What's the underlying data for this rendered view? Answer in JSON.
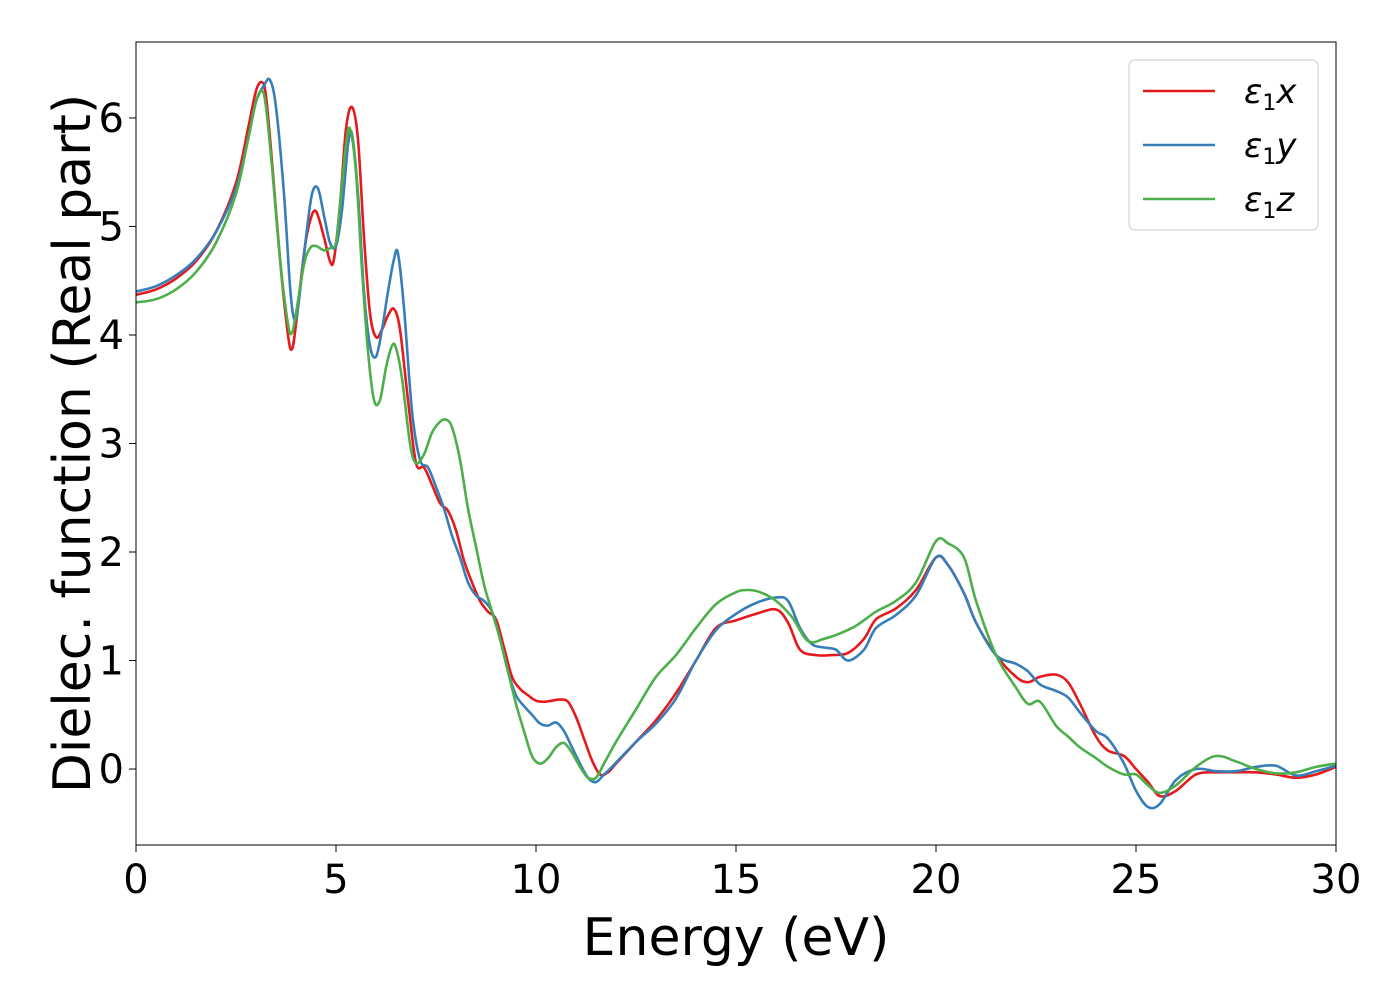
{
  "chart_data": {
    "type": "line",
    "title": "",
    "xlabel": "Energy (eV)",
    "ylabel": "Dielec. function (Real part)",
    "xlim": [
      0,
      30
    ],
    "ylim": [
      -0.7,
      6.7
    ],
    "xticks": [
      0,
      5,
      10,
      15,
      20,
      25,
      30
    ],
    "yticks": [
      0,
      1,
      2,
      3,
      4,
      5,
      6
    ],
    "grid": false,
    "legend_position": "top-right",
    "series": [
      {
        "name": "ε1x",
        "legend_main": "ε",
        "legend_sub": "1",
        "legend_var": "x",
        "color": "#e41a1c",
        "x": [
          0,
          0.5,
          1.0,
          1.5,
          2.0,
          2.5,
          2.8,
          3.0,
          3.15,
          3.25,
          3.4,
          3.6,
          3.8,
          3.9,
          4.0,
          4.2,
          4.35,
          4.5,
          4.7,
          4.85,
          4.95,
          5.1,
          5.25,
          5.4,
          5.55,
          5.7,
          5.85,
          6.0,
          6.15,
          6.3,
          6.45,
          6.6,
          6.8,
          7.0,
          7.2,
          7.4,
          7.6,
          7.8,
          8.0,
          8.2,
          8.4,
          8.6,
          8.8,
          9.0,
          9.2,
          9.4,
          9.6,
          9.8,
          10.0,
          10.2,
          10.4,
          10.6,
          10.8,
          11.0,
          11.2,
          11.4,
          11.6,
          11.8,
          12.0,
          12.5,
          13.0,
          13.5,
          14.0,
          14.5,
          15.0,
          15.5,
          16.0,
          16.3,
          16.6,
          17.0,
          17.4,
          17.8,
          18.2,
          18.5,
          19.0,
          19.5,
          20.0,
          20.3,
          20.7,
          21.0,
          21.5,
          22.0,
          22.3,
          22.6,
          23.0,
          23.3,
          23.6,
          24.0,
          24.3,
          24.7,
          25.0,
          25.3,
          25.6,
          26.0,
          26.5,
          27.0,
          27.5,
          28.0,
          28.5,
          29.0,
          29.5,
          30.0
        ],
        "y": [
          4.37,
          4.42,
          4.52,
          4.68,
          4.95,
          5.4,
          5.9,
          6.25,
          6.33,
          6.2,
          5.6,
          4.7,
          4.0,
          3.87,
          4.1,
          4.75,
          5.05,
          5.14,
          4.9,
          4.68,
          4.7,
          5.2,
          5.9,
          6.1,
          5.8,
          4.9,
          4.2,
          3.98,
          4.05,
          4.18,
          4.24,
          4.05,
          3.4,
          2.82,
          2.78,
          2.62,
          2.45,
          2.38,
          2.2,
          1.92,
          1.72,
          1.55,
          1.45,
          1.38,
          1.12,
          0.85,
          0.74,
          0.68,
          0.63,
          0.62,
          0.63,
          0.64,
          0.62,
          0.48,
          0.28,
          0.08,
          -0.05,
          -0.03,
          0.05,
          0.25,
          0.45,
          0.7,
          1.0,
          1.3,
          1.37,
          1.43,
          1.47,
          1.35,
          1.1,
          1.05,
          1.05,
          1.07,
          1.2,
          1.38,
          1.48,
          1.65,
          1.95,
          1.88,
          1.62,
          1.35,
          1.05,
          0.85,
          0.8,
          0.85,
          0.87,
          0.8,
          0.6,
          0.3,
          0.17,
          0.12,
          0.0,
          -0.12,
          -0.25,
          -0.2,
          -0.05,
          -0.03,
          -0.03,
          -0.03,
          -0.05,
          -0.08,
          -0.05,
          0.02
        ]
      },
      {
        "name": "ε1y",
        "legend_main": "ε",
        "legend_sub": "1",
        "legend_var": "y",
        "color": "#377eb8",
        "x": [
          0,
          0.5,
          1.0,
          1.5,
          2.0,
          2.5,
          2.8,
          3.0,
          3.2,
          3.35,
          3.5,
          3.7,
          3.85,
          3.95,
          4.05,
          4.25,
          4.4,
          4.55,
          4.7,
          4.85,
          5.0,
          5.15,
          5.3,
          5.4,
          5.55,
          5.7,
          5.85,
          6.0,
          6.15,
          6.3,
          6.45,
          6.55,
          6.7,
          6.9,
          7.1,
          7.3,
          7.5,
          7.7,
          7.9,
          8.1,
          8.3,
          8.5,
          8.7,
          8.9,
          9.1,
          9.3,
          9.5,
          9.7,
          9.9,
          10.1,
          10.3,
          10.5,
          10.7,
          10.9,
          11.1,
          11.3,
          11.5,
          11.7,
          11.9,
          12.5,
          13.0,
          13.5,
          14.0,
          14.5,
          15.0,
          15.5,
          16.0,
          16.3,
          16.6,
          16.9,
          17.2,
          17.5,
          17.8,
          18.2,
          18.5,
          19.0,
          19.5,
          20.0,
          20.3,
          20.7,
          21.0,
          21.5,
          22.0,
          22.3,
          22.6,
          23.0,
          23.3,
          23.6,
          24.0,
          24.3,
          24.7,
          25.0,
          25.3,
          25.6,
          26.0,
          26.5,
          27.0,
          27.5,
          28.0,
          28.5,
          29.0,
          29.5,
          30.0
        ],
        "y": [
          4.4,
          4.45,
          4.55,
          4.7,
          4.95,
          5.35,
          5.8,
          6.15,
          6.3,
          6.35,
          6.1,
          5.3,
          4.45,
          4.15,
          4.25,
          4.9,
          5.3,
          5.35,
          5.1,
          4.85,
          4.82,
          5.15,
          5.75,
          5.85,
          5.3,
          4.4,
          3.9,
          3.8,
          4.05,
          4.4,
          4.7,
          4.75,
          4.25,
          3.3,
          2.85,
          2.78,
          2.6,
          2.4,
          2.15,
          1.95,
          1.72,
          1.6,
          1.55,
          1.45,
          1.2,
          0.9,
          0.68,
          0.58,
          0.5,
          0.42,
          0.4,
          0.43,
          0.35,
          0.2,
          0.05,
          -0.08,
          -0.12,
          -0.05,
          0.02,
          0.25,
          0.42,
          0.65,
          1.0,
          1.28,
          1.43,
          1.53,
          1.58,
          1.55,
          1.3,
          1.15,
          1.12,
          1.1,
          1.0,
          1.1,
          1.3,
          1.42,
          1.6,
          1.95,
          1.88,
          1.62,
          1.35,
          1.05,
          0.97,
          0.9,
          0.78,
          0.72,
          0.66,
          0.52,
          0.35,
          0.28,
          0.05,
          -0.2,
          -0.35,
          -0.32,
          -0.1,
          0.0,
          -0.02,
          -0.02,
          0.02,
          0.03,
          -0.06,
          -0.02,
          0.03
        ]
      },
      {
        "name": "ε1z",
        "legend_main": "ε",
        "legend_sub": "1",
        "legend_var": "z",
        "color": "#4daf4a",
        "x": [
          0,
          0.5,
          1.0,
          1.5,
          2.0,
          2.5,
          2.8,
          3.0,
          3.15,
          3.25,
          3.4,
          3.6,
          3.8,
          3.9,
          4.0,
          4.2,
          4.35,
          4.5,
          4.7,
          4.85,
          5.0,
          5.1,
          5.25,
          5.35,
          5.5,
          5.65,
          5.8,
          5.95,
          6.1,
          6.25,
          6.4,
          6.5,
          6.65,
          6.85,
          7.0,
          7.2,
          7.4,
          7.6,
          7.75,
          7.9,
          8.1,
          8.3,
          8.5,
          8.7,
          8.9,
          9.1,
          9.3,
          9.5,
          9.7,
          9.9,
          10.1,
          10.3,
          10.5,
          10.7,
          10.9,
          11.1,
          11.3,
          11.5,
          11.7,
          12.0,
          12.5,
          13.0,
          13.5,
          14.0,
          14.5,
          15.0,
          15.3,
          15.6,
          16.0,
          16.4,
          16.8,
          17.2,
          17.6,
          18.0,
          18.5,
          19.0,
          19.5,
          20.0,
          20.3,
          20.7,
          21.0,
          21.5,
          22.0,
          22.3,
          22.6,
          23.0,
          23.3,
          23.6,
          24.0,
          24.3,
          24.7,
          25.0,
          25.3,
          25.6,
          26.0,
          26.5,
          27.0,
          27.5,
          28.0,
          28.5,
          29.0,
          29.5,
          30.0
        ],
        "y": [
          4.3,
          4.33,
          4.42,
          4.58,
          4.85,
          5.3,
          5.8,
          6.15,
          6.25,
          6.1,
          5.55,
          4.7,
          4.1,
          4.02,
          4.2,
          4.65,
          4.8,
          4.82,
          4.78,
          4.8,
          4.85,
          5.2,
          5.75,
          5.9,
          5.5,
          4.6,
          3.85,
          3.4,
          3.4,
          3.7,
          3.9,
          3.88,
          3.6,
          3.0,
          2.82,
          2.9,
          3.1,
          3.2,
          3.22,
          3.15,
          2.85,
          2.4,
          2.05,
          1.7,
          1.45,
          1.2,
          0.9,
          0.6,
          0.35,
          0.12,
          0.05,
          0.1,
          0.2,
          0.24,
          0.15,
          0.02,
          -0.08,
          -0.08,
          0.05,
          0.25,
          0.55,
          0.85,
          1.05,
          1.3,
          1.52,
          1.63,
          1.65,
          1.63,
          1.55,
          1.4,
          1.18,
          1.2,
          1.25,
          1.32,
          1.45,
          1.55,
          1.72,
          2.1,
          2.08,
          1.95,
          1.55,
          1.05,
          0.75,
          0.6,
          0.62,
          0.4,
          0.3,
          0.2,
          0.1,
          0.02,
          -0.05,
          -0.05,
          -0.15,
          -0.22,
          -0.15,
          0.02,
          0.12,
          0.07,
          0.0,
          -0.04,
          -0.03,
          0.02,
          0.05
        ]
      }
    ]
  }
}
